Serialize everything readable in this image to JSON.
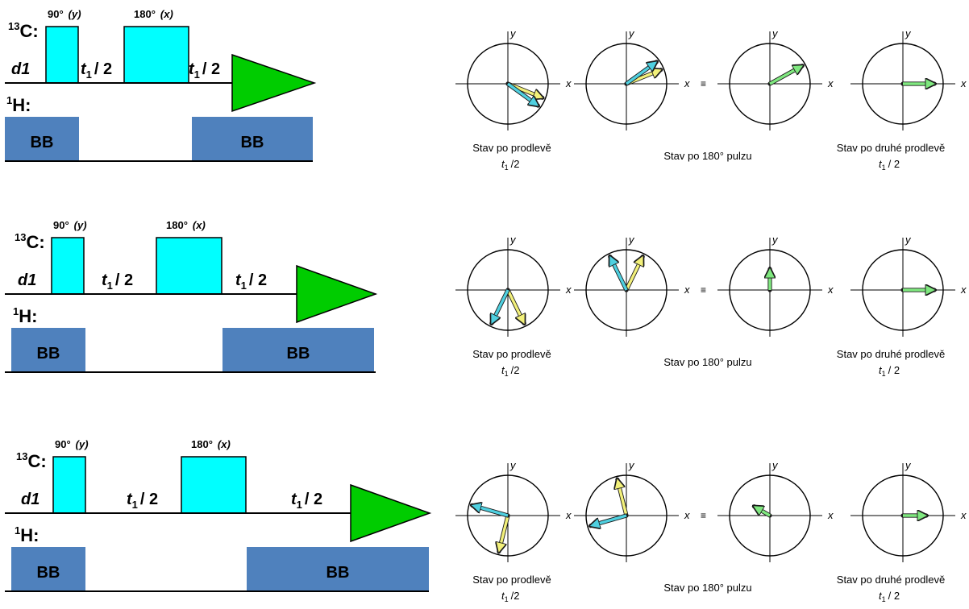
{
  "labels": {
    "carbon": "C:",
    "carbon_isotope": "13",
    "proton": "H:",
    "proton_isotope": "1",
    "delay": "d1",
    "pulse90": "90°",
    "pulse90_phase": "(y)",
    "pulse180": "180°",
    "pulse180_phase": "(x)",
    "evolution_t": "t",
    "evolution_sub": "1",
    "evolution_half": "/ 2",
    "decoupling": "BB",
    "axis_x": "x",
    "axis_y": "y",
    "equiv": "≡",
    "caption1": "Stav po prodlevě",
    "caption1_half": "/2",
    "caption2": "Stav po 180° pulzu",
    "caption3": "Stav po druhé prodlevě",
    "caption3_half": "/ 2"
  },
  "colors": {
    "pulse": "#00ffff",
    "acquisition": "#00cc00",
    "decoupling": "#4f81bd",
    "vector_yellow": "#f2f07a",
    "vector_cyan": "#4fd0e0",
    "vector_green": "#7fe87f"
  },
  "vectors": {
    "rows": [
      {
        "state1": {
          "yellow": -22,
          "cyan": -36
        },
        "state2": {
          "yellow": 22,
          "cyan": 36
        },
        "state3": {
          "green": 29
        },
        "state4": {
          "green": 0,
          "green_length": 0.78
        }
      },
      {
        "state1": {
          "yellow": -64,
          "cyan": -116
        },
        "state2": {
          "yellow": 64,
          "cyan": 116
        },
        "state3": {
          "green": 90,
          "green_length": 0.52
        },
        "state4": {
          "green": 0,
          "green_length": 0.78
        }
      },
      {
        "state1": {
          "yellow": -104,
          "cyan": 164
        },
        "state2": {
          "yellow": 104,
          "cyan": -164
        },
        "state3": {
          "green": 150,
          "green_length": 0.45
        },
        "state4": {
          "green": 0,
          "green_length": 0.58
        }
      }
    ]
  }
}
